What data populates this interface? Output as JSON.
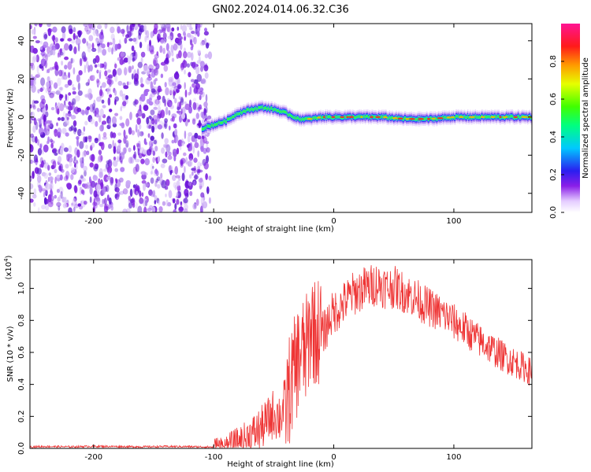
{
  "title": "GN02.2024.014.06.32.C36",
  "chart_data": [
    {
      "type": "heatmap",
      "xlabel": "Height of straight line (km)",
      "ylabel": "Frequency (Hz)",
      "xlim": [
        -253,
        165
      ],
      "ylim": [
        -50,
        49
      ],
      "xticks": [
        "-200",
        "-100",
        "0",
        "100"
      ],
      "xtick_values": [
        -200,
        -100,
        0,
        100
      ],
      "yticks": [
        "-40",
        "-20",
        "0",
        "20",
        "40"
      ],
      "ytick_values": [
        -40,
        -20,
        0,
        20,
        40
      ],
      "noise_region_x": [
        -253,
        -103
      ],
      "signal_ridge": {
        "x": [
          -110,
          -100,
          -90,
          -80,
          -70,
          -60,
          -50,
          -40,
          -30,
          -20,
          -10,
          0,
          20,
          40,
          60,
          80,
          100,
          120,
          140,
          165
        ],
        "frequency_hz": [
          -6,
          -4,
          -2,
          2,
          4,
          5,
          4,
          2,
          -1,
          -1,
          0,
          0,
          0,
          0,
          -1,
          -1,
          0,
          0,
          0,
          0
        ]
      },
      "colorbar": {
        "label": "Normalized spectral amplitude",
        "range": [
          0,
          1
        ],
        "tick_labels": [
          "0.0",
          "0.2",
          "0.4",
          "0.6",
          "0.8"
        ],
        "tick_values": [
          0.0,
          0.2,
          0.4,
          0.6,
          0.8
        ]
      }
    },
    {
      "type": "line",
      "xlabel": "Height of straight line (km)",
      "ylabel": "SNR (10 * v/v)",
      "y_multiplier_label": "(x10",
      "y_multiplier_exp": "4",
      "xlim": [
        -253,
        165
      ],
      "ylim": [
        0,
        1.18
      ],
      "xticks": [
        "-200",
        "-100",
        "0",
        "100"
      ],
      "xtick_values": [
        -200,
        -100,
        0,
        100
      ],
      "yticks": [
        "0.0",
        "0.2",
        "0.4",
        "0.6",
        "0.8",
        "1.0"
      ],
      "ytick_values": [
        0.0,
        0.2,
        0.4,
        0.6,
        0.8,
        1.0
      ],
      "series": [
        {
          "color": "#ee3333",
          "x": [
            -253,
            -240,
            -220,
            -200,
            -180,
            -160,
            -140,
            -120,
            -110,
            -100,
            -95,
            -90,
            -85,
            -80,
            -75,
            -70,
            -65,
            -60,
            -55,
            -50,
            -45,
            -40,
            -35,
            -30,
            -27,
            -24,
            -21,
            -18,
            -15,
            -12,
            -9,
            -6,
            -3,
            0,
            5,
            10,
            15,
            20,
            25,
            30,
            35,
            40,
            45,
            50,
            55,
            60,
            65,
            70,
            75,
            80,
            85,
            90,
            95,
            100,
            110,
            120,
            130,
            140,
            150,
            160,
            165
          ],
          "y": [
            0.01,
            0.012,
            0.01,
            0.013,
            0.012,
            0.01,
            0.012,
            0.011,
            0.01,
            0.008,
            0.01,
            0.012,
            0.02,
            0.035,
            0.05,
            0.08,
            0.1,
            0.13,
            0.17,
            0.22,
            0.2,
            0.28,
            0.42,
            0.55,
            0.62,
            0.58,
            0.68,
            0.8,
            0.7,
            0.75,
            0.72,
            0.76,
            0.82,
            0.85,
            0.88,
            0.92,
            0.96,
            0.98,
            1.0,
            1.01,
            1.03,
            1.02,
            1.0,
            1.01,
            0.99,
            0.97,
            0.95,
            0.93,
            0.9,
            0.88,
            0.86,
            0.84,
            0.82,
            0.79,
            0.74,
            0.68,
            0.63,
            0.58,
            0.54,
            0.5,
            0.47
          ]
        }
      ]
    }
  ]
}
